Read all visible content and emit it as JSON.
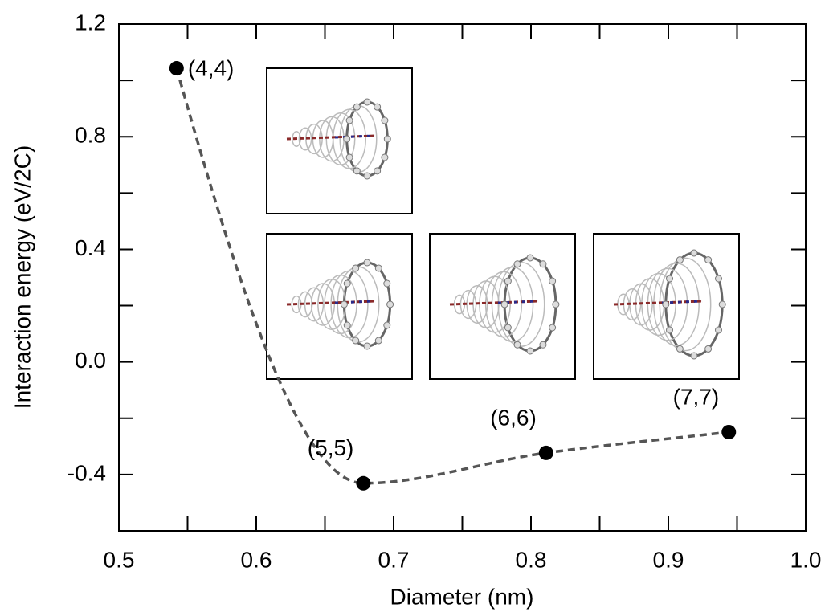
{
  "chart_data": {
    "type": "scatter",
    "x_label": "Diameter (nm)",
    "y_label": "Interaction energy (eV/2C)",
    "x": [
      0.542,
      0.678,
      0.811,
      0.944
    ],
    "values": [
      1.043,
      -0.431,
      -0.323,
      -0.249
    ],
    "point_labels": [
      "(4,4)",
      "(5,5)",
      "(6,6)",
      "(7,7)"
    ],
    "color": "#000000",
    "line_color": "#555555",
    "xlim": [
      0.5,
      1.0
    ],
    "ylim": [
      -0.6,
      1.2
    ],
    "xticks": [
      0.5,
      0.6,
      0.7,
      0.8,
      0.9,
      {
        "value": 1.0,
        "label": "1.0"
      }
    ],
    "yticks": [
      -0.4,
      {
        "value": 0.0,
        "label": "0.0"
      },
      0.4,
      0.8,
      1.2
    ],
    "xminorticks": [
      0.55,
      0.65,
      0.75,
      0.85,
      0.95
    ],
    "yminorticks": [
      -0.2,
      0.2,
      0.6,
      1.0
    ]
  }
}
